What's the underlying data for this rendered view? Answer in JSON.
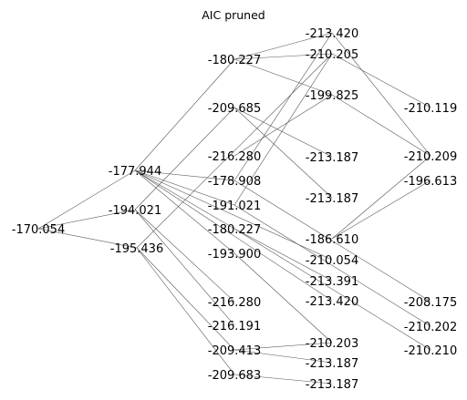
{
  "title": "AIC pruned",
  "colors": {
    "edge": "#555555",
    "text": "#000000",
    "background": "#ffffff"
  },
  "nodes": [
    {
      "id": "n0",
      "label": "-170.054"
    },
    {
      "id": "n1",
      "label": "-177.944"
    },
    {
      "id": "n2",
      "label": "-194.021"
    },
    {
      "id": "n3",
      "label": "-195.436"
    },
    {
      "id": "n4",
      "label": "-180.227"
    },
    {
      "id": "n5",
      "label": "-209.685"
    },
    {
      "id": "n6",
      "label": "-216.280"
    },
    {
      "id": "n7",
      "label": "-178.908"
    },
    {
      "id": "n8",
      "label": "-191.021"
    },
    {
      "id": "n9",
      "label": "-180.227"
    },
    {
      "id": "n10",
      "label": "-193.900"
    },
    {
      "id": "n11",
      "label": "-216.280"
    },
    {
      "id": "n12",
      "label": "-216.191"
    },
    {
      "id": "n13",
      "label": "-209.413"
    },
    {
      "id": "n14",
      "label": "-209.683"
    },
    {
      "id": "n15",
      "label": "-213.420"
    },
    {
      "id": "n16",
      "label": "-210.205"
    },
    {
      "id": "n17",
      "label": "-199.825"
    },
    {
      "id": "n18",
      "label": "-213.187"
    },
    {
      "id": "n19",
      "label": "-213.187"
    },
    {
      "id": "n20",
      "label": "-186.610"
    },
    {
      "id": "n21",
      "label": "-210.054"
    },
    {
      "id": "n22",
      "label": "-213.391"
    },
    {
      "id": "n23",
      "label": "-213.420"
    },
    {
      "id": "n24",
      "label": "-210.203"
    },
    {
      "id": "n25",
      "label": "-213.187"
    },
    {
      "id": "n26",
      "label": "-213.187"
    },
    {
      "id": "n27",
      "label": "-210.119"
    },
    {
      "id": "n28",
      "label": "-210.209"
    },
    {
      "id": "n29",
      "label": "-196.613"
    },
    {
      "id": "n30",
      "label": "-208.175"
    },
    {
      "id": "n31",
      "label": "-210.202"
    },
    {
      "id": "n32",
      "label": "-210.210"
    }
  ],
  "edges": [
    [
      "n0",
      "n1"
    ],
    [
      "n0",
      "n2"
    ],
    [
      "n0",
      "n3"
    ],
    [
      "n1",
      "n4"
    ],
    [
      "n1",
      "n7"
    ],
    [
      "n1",
      "n8"
    ],
    [
      "n1",
      "n9"
    ],
    [
      "n1",
      "n10"
    ],
    [
      "n1",
      "n21"
    ],
    [
      "n1",
      "n23"
    ],
    [
      "n2",
      "n5"
    ],
    [
      "n2",
      "n11"
    ],
    [
      "n2",
      "n12"
    ],
    [
      "n3",
      "n16"
    ],
    [
      "n3",
      "n13"
    ],
    [
      "n3",
      "n14"
    ],
    [
      "n4",
      "n15"
    ],
    [
      "n4",
      "n16"
    ],
    [
      "n4",
      "n17"
    ],
    [
      "n5",
      "n18"
    ],
    [
      "n5",
      "n19"
    ],
    [
      "n6",
      "n17"
    ],
    [
      "n7",
      "n15"
    ],
    [
      "n7",
      "n30"
    ],
    [
      "n8",
      "n16"
    ],
    [
      "n8",
      "n31"
    ],
    [
      "n9",
      "n32"
    ],
    [
      "n9",
      "n22"
    ],
    [
      "n10",
      "n24"
    ],
    [
      "n13",
      "n24"
    ],
    [
      "n13",
      "n25"
    ],
    [
      "n14",
      "n26"
    ],
    [
      "n15",
      "n28"
    ],
    [
      "n16",
      "n27"
    ],
    [
      "n17",
      "n28"
    ],
    [
      "n20",
      "n29"
    ],
    [
      "n20",
      "n28"
    ]
  ]
}
